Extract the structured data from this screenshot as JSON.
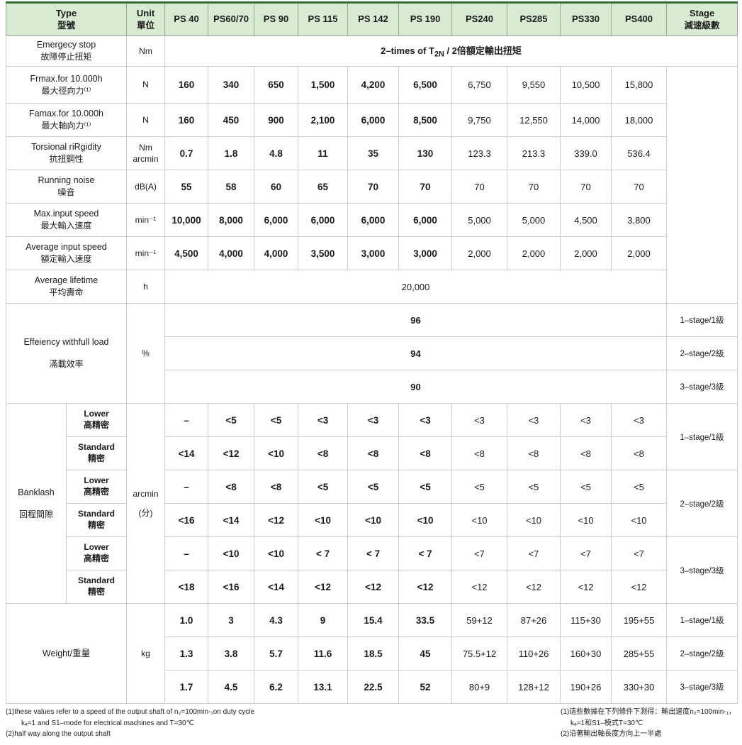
{
  "header": {
    "type_en": "Type",
    "type_zh": "型號",
    "unit_en": "Unit",
    "unit_zh": "單位",
    "models": [
      "PS 40",
      "PS60/70",
      "PS 90",
      "PS 115",
      "PS 142",
      "PS 190",
      "PS240",
      "PS285",
      "PS330",
      "PS400"
    ],
    "stage_en": "Stage",
    "stage_zh": "減速級數"
  },
  "rows": {
    "emergency": {
      "en": "Emergecy stop",
      "zh": "故障停止扭矩",
      "unit": "Nm",
      "value_prefix": "2–times of T",
      "value_sub": "2N",
      "value_suffix": " / 2倍額定輸出扭矩"
    },
    "frmax": {
      "en": "Frmax.for 10.000h",
      "zh": "最大徑向力⁽¹⁾",
      "unit": "N",
      "values": [
        "160",
        "340",
        "650",
        "1,500",
        "4,200",
        "6,500",
        "6,750",
        "9,550",
        "10,500",
        "15,800"
      ]
    },
    "famax": {
      "en": "Famax.for 10.000h",
      "zh": "最大軸向力⁽¹⁾",
      "unit": "N",
      "values": [
        "160",
        "450",
        "900",
        "2,100",
        "6,000",
        "8,500",
        "9,750",
        "12,550",
        "14,000",
        "18,000"
      ]
    },
    "torsional": {
      "en": "Torsional riRgidity",
      "zh": "抗扭鋼性",
      "unit_line1": "Nm",
      "unit_line2": "arcmin",
      "values": [
        "0.7",
        "1.8",
        "4.8",
        "11",
        "35",
        "130",
        "123.3",
        "213.3",
        "339.0",
        "536.4"
      ]
    },
    "noise": {
      "en": "Running noise",
      "zh": "噪音",
      "unit": "dB(A)",
      "values": [
        "55",
        "58",
        "60",
        "65",
        "70",
        "70",
        "70",
        "70",
        "70",
        "70"
      ]
    },
    "max_speed": {
      "en": "Max.input speed",
      "zh": "最大輸入速度",
      "unit": "min⁻¹",
      "values": [
        "10,000",
        "8,000",
        "6,000",
        "6,000",
        "6,000",
        "6,000",
        "5,000",
        "5,000",
        "4,500",
        "3,800"
      ]
    },
    "avg_speed": {
      "en": "Average input speed",
      "zh": "額定輸入速度",
      "unit": "min⁻¹",
      "values": [
        "4,500",
        "4,000",
        "4,000",
        "3,500",
        "3,000",
        "3,000",
        "2,000",
        "2,000",
        "2,000",
        "2,000"
      ]
    },
    "lifetime": {
      "en": "Average lifetime",
      "zh": "平均壽命",
      "unit": "h",
      "value": "20,000"
    },
    "efficiency": {
      "en": "Effeiency withfull load",
      "zh": "滿載效率",
      "unit": "%",
      "entries": [
        {
          "value": "96",
          "stage": "1–stage/1級"
        },
        {
          "value": "94",
          "stage": "2–stage/2級"
        },
        {
          "value": "90",
          "stage": "3–stage/3級"
        }
      ]
    },
    "backlash": {
      "en": "Banklash",
      "zh": "回程間隙",
      "unit_line1": "arcmin",
      "unit_line2": "(分)",
      "sub_rows": [
        {
          "type_en": "Lower",
          "type_zh": "高精密",
          "values": [
            "–",
            "<5",
            "<5",
            "<3",
            "<3",
            "<3",
            "<3",
            "<3",
            "<3",
            "<3"
          ]
        },
        {
          "type_en": "Standard",
          "type_zh": "精密",
          "values": [
            "<14",
            "<12",
            "<10",
            "<8",
            "<8",
            "<8",
            "<8",
            "<8",
            "<8",
            "<8"
          ]
        },
        {
          "type_en": "Lower",
          "type_zh": "高精密",
          "values": [
            "–",
            "<8",
            "<8",
            "<5",
            "<5",
            "<5",
            "<5",
            "<5",
            "<5",
            "<5"
          ]
        },
        {
          "type_en": "Standard",
          "type_zh": "精密",
          "values": [
            "<16",
            "<14",
            "<12",
            "<10",
            "<10",
            "<10",
            "<10",
            "<10",
            "<10",
            "<10"
          ]
        },
        {
          "type_en": "Lower",
          "type_zh": "高精密",
          "values": [
            "–",
            "<10",
            "<10",
            "< 7",
            "< 7",
            "< 7",
            "<7",
            "<7",
            "<7",
            "<7"
          ]
        },
        {
          "type_en": "Standard",
          "type_zh": "精密",
          "values": [
            "<18",
            "<16",
            "<14",
            "<12",
            "<12",
            "<12",
            "<12",
            "<12",
            "<12",
            "<12"
          ]
        }
      ],
      "stages": [
        "1–stage/1級",
        "2–stage/2級",
        "3–stage/3級"
      ]
    },
    "weight": {
      "label": "Weight/重量",
      "unit": "kg",
      "entries": [
        {
          "values": [
            "1.0",
            "3",
            "4.3",
            "9",
            "15.4",
            "33.5",
            "59+12",
            "87+26",
            "115+30",
            "195+55"
          ],
          "stage": "1–stage/1級"
        },
        {
          "values": [
            "1.3",
            "3.8",
            "5.7",
            "11.6",
            "18.5",
            "45",
            "75.5+12",
            "110+26",
            "160+30",
            "285+55"
          ],
          "stage": "2–stage/2級"
        },
        {
          "values": [
            "1.7",
            "4.5",
            "6.2",
            "13.1",
            "22.5",
            "52",
            "80+9",
            "128+12",
            "190+26",
            "330+30"
          ],
          "stage": "3–stage/3級"
        }
      ]
    }
  },
  "footnotes": {
    "left": [
      "(1)these values refer to a speed of the output shaft of n₂=100min-₁on duty cycle",
      "kₐ=1 and S1–mode for electrical machines and T=30℃",
      "(2)half way along the output shaft"
    ],
    "right": [
      "(1)這些數據在下列條件下測得：輸出速度n₂=100min-₁，",
      "kₐ=1和S1–模式T=30℃",
      "(2)沿著輸出軸長度方向上一半處"
    ]
  },
  "colors": {
    "header_bg": "#d9ead3",
    "header_top_border": "#356b35",
    "grid": "#c9cfc9"
  }
}
